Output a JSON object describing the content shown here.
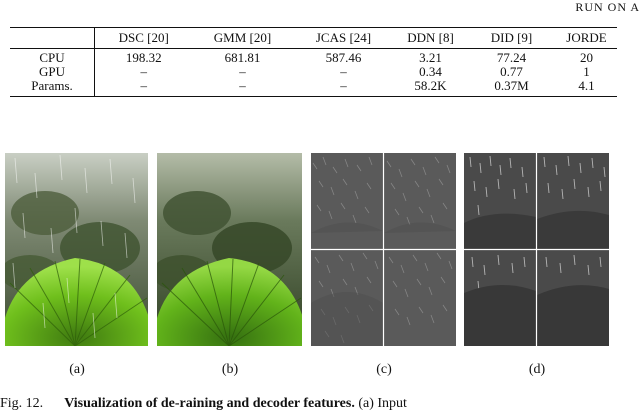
{
  "header": {
    "running_text": "RUN ON A"
  },
  "table": {
    "columns": [
      "DSC [20]",
      "GMM [20]",
      "JCAS [24]",
      "DDN [8]",
      "DID [9]",
      "JORDE"
    ],
    "rows": [
      {
        "label": "CPU",
        "cells": [
          "198.32",
          "681.81",
          "587.46",
          "3.21",
          "77.24",
          "20"
        ]
      },
      {
        "label": "GPU",
        "cells": [
          "–",
          "–",
          "–",
          "0.34",
          "0.77",
          "1"
        ]
      },
      {
        "label": "Params.",
        "cells": [
          "–",
          "–",
          "–",
          "58.2K",
          "0.37M",
          "4.1"
        ]
      }
    ]
  },
  "panels": [
    {
      "label": "(a)"
    },
    {
      "label": "(b)"
    },
    {
      "label": "(c)"
    },
    {
      "label": "(d)"
    }
  ],
  "caption": {
    "prefix": "Fig. 12.",
    "bold": "Visualization of de-raining and decoder features.",
    "rest": " (a) Input"
  }
}
